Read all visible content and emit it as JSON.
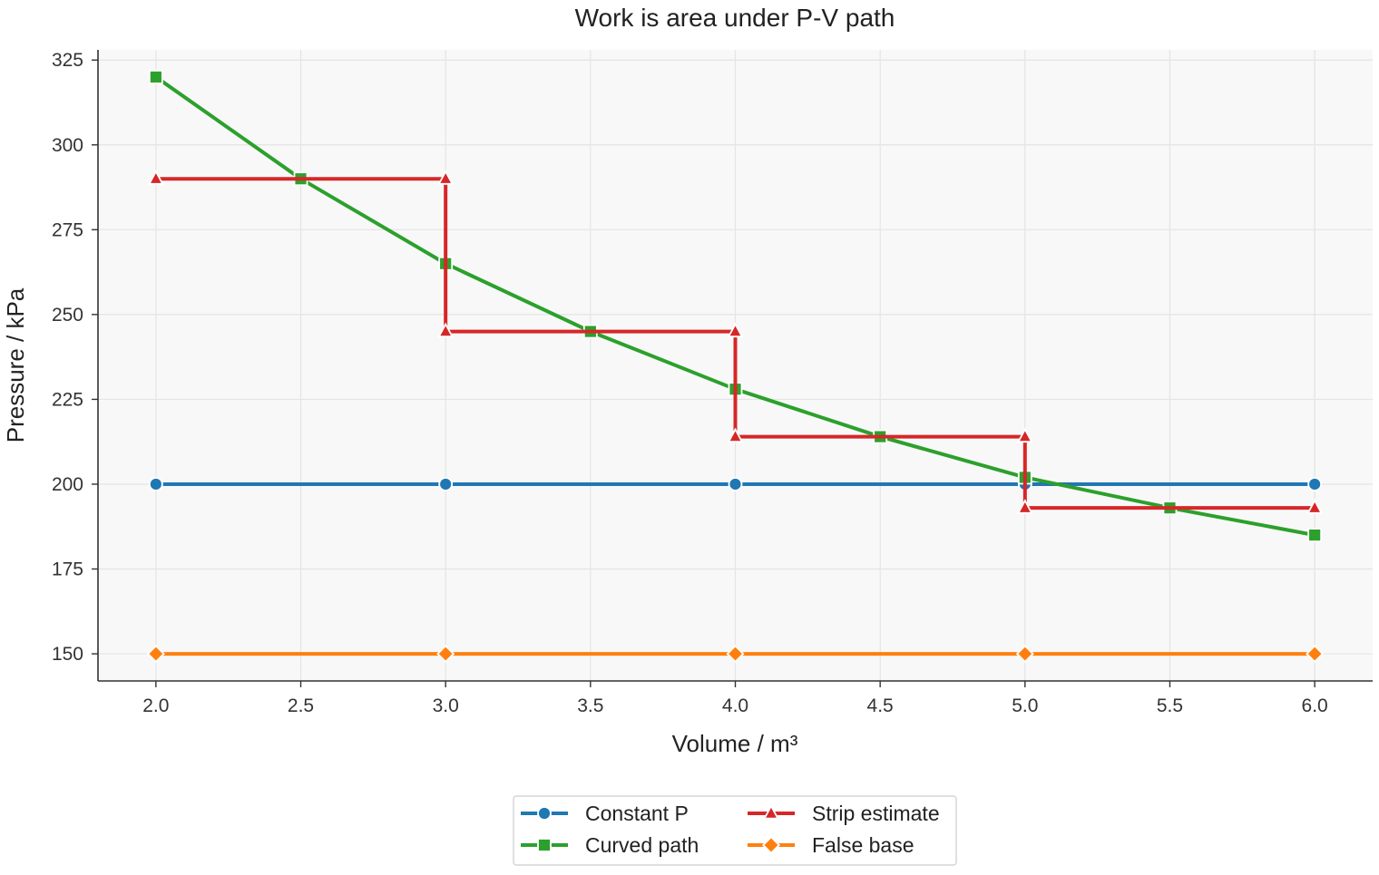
{
  "chart_data": {
    "type": "line",
    "title": "Work is area under P-V path",
    "xlabel": "Volume / m³",
    "ylabel": "Pressure / kPa",
    "xlim": [
      1.8,
      6.2
    ],
    "ylim": [
      142,
      328
    ],
    "x_ticks": [
      2.0,
      2.5,
      3.0,
      3.5,
      4.0,
      4.5,
      5.0,
      5.5,
      6.0
    ],
    "x_tick_labels": [
      "2.0",
      "2.5",
      "3.0",
      "3.5",
      "4.0",
      "4.5",
      "5.0",
      "5.5",
      "6.0"
    ],
    "y_ticks": [
      150,
      175,
      200,
      225,
      250,
      275,
      300,
      325
    ],
    "y_tick_labels": [
      "150",
      "175",
      "200",
      "225",
      "250",
      "275",
      "300",
      "325"
    ],
    "grid": true,
    "legend_position": "bottom-center",
    "series": [
      {
        "name": "Constant P",
        "color": "#1f77b4",
        "marker": "circle",
        "x": [
          2,
          3,
          4,
          5,
          6
        ],
        "y": [
          200,
          200,
          200,
          200,
          200
        ]
      },
      {
        "name": "Curved path",
        "color": "#2ca02c",
        "marker": "square",
        "x": [
          2,
          2.5,
          3,
          3.5,
          4,
          4.5,
          5,
          5.5,
          6
        ],
        "y": [
          320,
          290,
          265,
          245,
          228,
          214,
          202,
          193,
          185
        ]
      },
      {
        "name": "Strip estimate",
        "color": "#d62728",
        "marker": "triangle",
        "x": [
          2,
          3,
          3,
          4,
          4,
          5,
          5,
          6
        ],
        "y": [
          290,
          290,
          245,
          245,
          214,
          214,
          193,
          193
        ]
      },
      {
        "name": "False base",
        "color": "#ff7f0e",
        "marker": "diamond",
        "x": [
          2,
          3,
          4,
          5,
          6
        ],
        "y": [
          150,
          150,
          150,
          150,
          150
        ]
      }
    ]
  }
}
